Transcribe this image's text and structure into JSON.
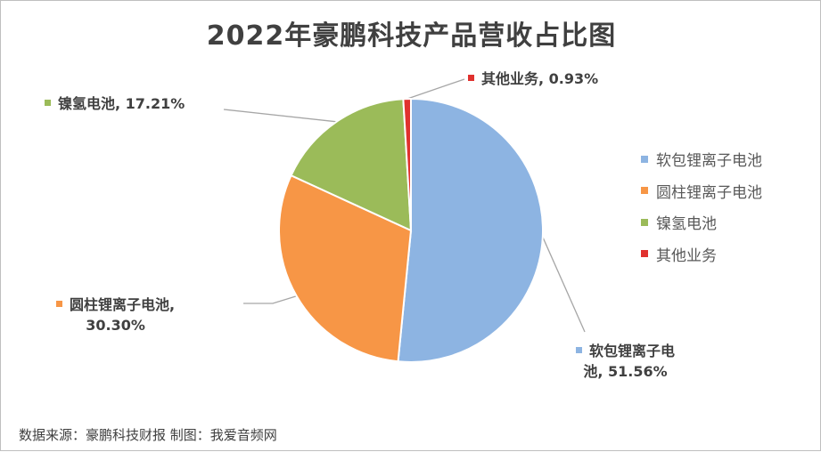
{
  "chart_data": {
    "type": "pie",
    "title": "2022年豪鹏科技产品营收占比图",
    "categories": [
      "软包锂离子电池",
      "圆柱锂离子电池",
      "镍氢电池",
      "其他业务"
    ],
    "values": [
      51.56,
      30.3,
      17.21,
      0.93
    ],
    "value_labels": [
      "51.56%",
      "30.30%",
      "17.21%",
      "0.93%"
    ],
    "colors": [
      "#8db4e2",
      "#f79646",
      "#9bbb59",
      "#e0312e"
    ],
    "legend_position": "right",
    "start_angle": "top, clockwise",
    "data_labels": [
      {
        "lines": [
          "软包锂离子电",
          "池, 51.56%"
        ]
      },
      {
        "lines": [
          "圆柱锂离子电池,",
          "30.30%"
        ]
      },
      {
        "lines": [
          "镍氢电池, 17.21%"
        ]
      },
      {
        "lines": [
          "其他业务, 0.93%"
        ]
      }
    ]
  },
  "legend": {
    "items": [
      {
        "label": "软包锂离子电池",
        "color": "#8db4e2"
      },
      {
        "label": "圆柱锂离子电池",
        "color": "#f79646"
      },
      {
        "label": "镍氢电池",
        "color": "#9bbb59"
      },
      {
        "label": "其他业务",
        "color": "#e0312e"
      }
    ]
  },
  "source_note": "数据来源：豪鹏科技财报  制图：我爱音频网"
}
